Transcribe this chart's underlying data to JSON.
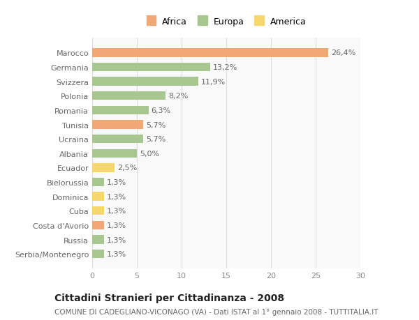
{
  "categories": [
    "Marocco",
    "Germania",
    "Svizzera",
    "Polonia",
    "Romania",
    "Tunisia",
    "Ucraina",
    "Albania",
    "Ecuador",
    "Bielorussia",
    "Dominica",
    "Cuba",
    "Costa d'Avorio",
    "Russia",
    "Serbia/Montenegro"
  ],
  "values": [
    26.4,
    13.2,
    11.9,
    8.2,
    6.3,
    5.7,
    5.7,
    5.0,
    2.5,
    1.3,
    1.3,
    1.3,
    1.3,
    1.3,
    1.3
  ],
  "labels": [
    "26,4%",
    "13,2%",
    "11,9%",
    "8,2%",
    "6,3%",
    "5,7%",
    "5,7%",
    "5,0%",
    "2,5%",
    "1,3%",
    "1,3%",
    "1,3%",
    "1,3%",
    "1,3%",
    "1,3%"
  ],
  "colors": [
    "#f0a875",
    "#a8c68f",
    "#a8c68f",
    "#a8c68f",
    "#a8c68f",
    "#f0a875",
    "#a8c68f",
    "#a8c68f",
    "#f5d76e",
    "#a8c68f",
    "#f5d76e",
    "#f5d76e",
    "#f0a875",
    "#a8c68f",
    "#a8c68f"
  ],
  "legend_labels": [
    "Africa",
    "Europa",
    "America"
  ],
  "legend_colors": [
    "#f0a875",
    "#a8c68f",
    "#f5d76e"
  ],
  "title": "Cittadini Stranieri per Cittadinanza - 2008",
  "subtitle": "COMUNE DI CADEGLIANO-VICONAGO (VA) - Dati ISTAT al 1° gennaio 2008 - TUTTITALIA.IT",
  "xlim": [
    0,
    30
  ],
  "xticks": [
    0,
    5,
    10,
    15,
    20,
    25,
    30
  ],
  "bg_color": "#ffffff",
  "plot_bg_color": "#f9f9f9",
  "grid_color": "#dddddd",
  "bar_height": 0.6,
  "label_fontsize": 8,
  "title_fontsize": 10,
  "subtitle_fontsize": 7.5,
  "tick_fontsize": 8,
  "legend_fontsize": 9
}
